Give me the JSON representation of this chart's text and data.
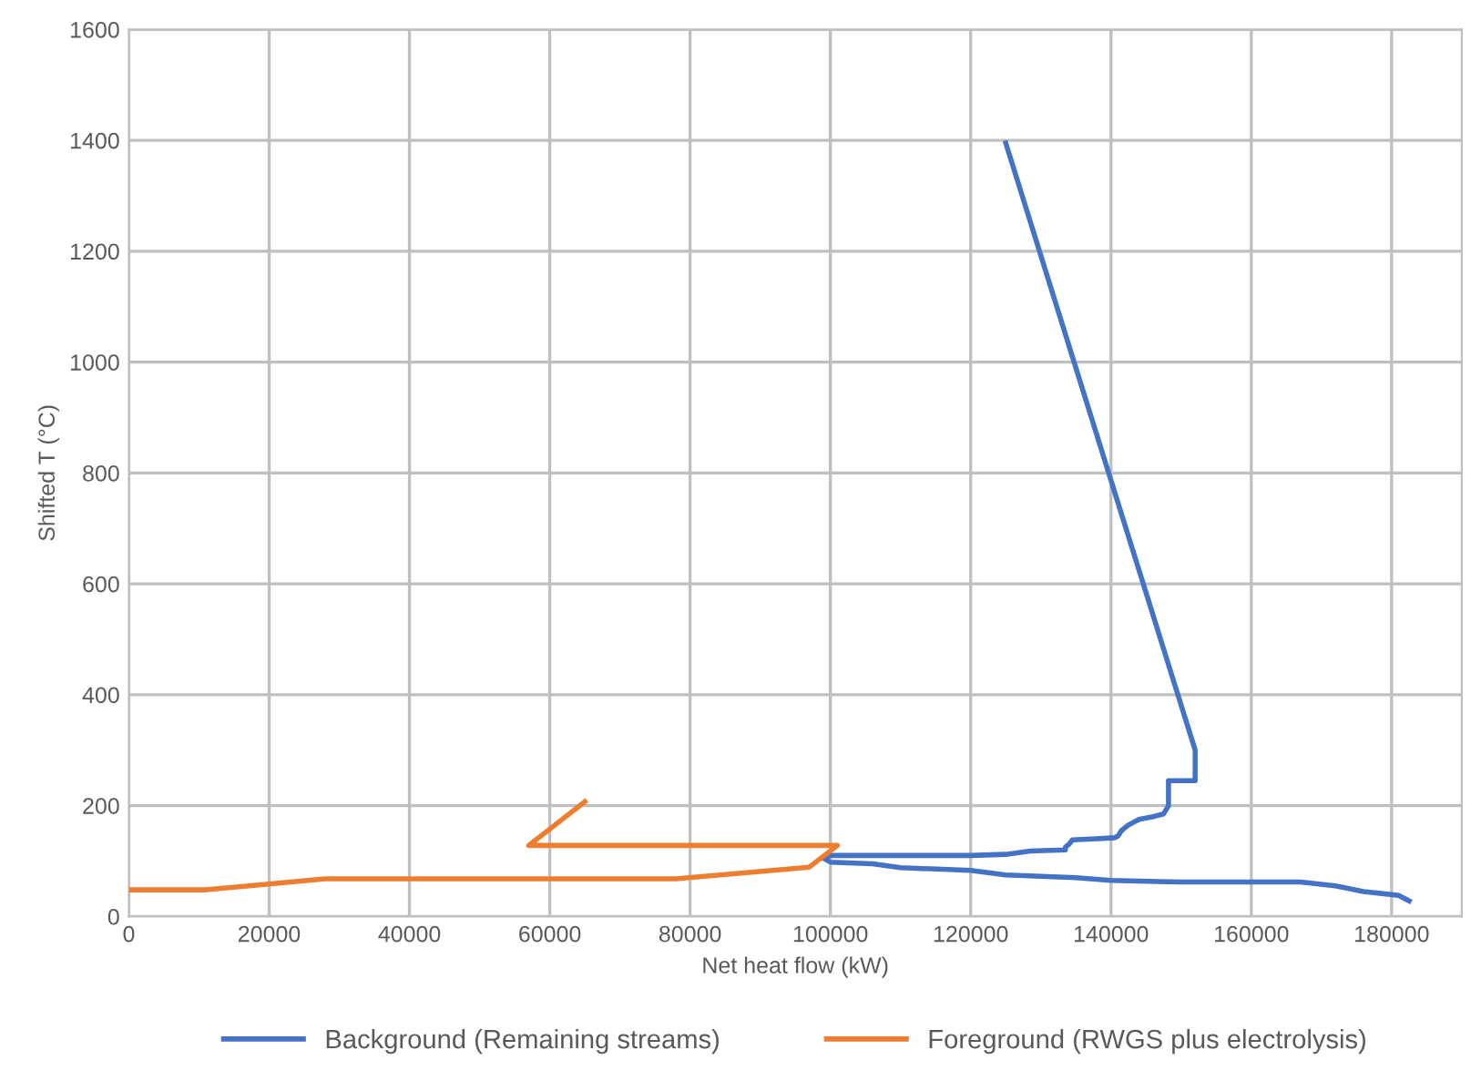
{
  "chart_data": {
    "type": "line",
    "xlabel": "Net heat flow (kW)",
    "ylabel": "Shifted T (°C)",
    "xlim": [
      0,
      190000
    ],
    "ylim": [
      0,
      1600
    ],
    "xticks": [
      0,
      20000,
      40000,
      60000,
      80000,
      100000,
      120000,
      140000,
      160000,
      180000
    ],
    "yticks": [
      0,
      200,
      400,
      600,
      800,
      1000,
      1200,
      1400,
      1600
    ],
    "grid": true,
    "legend": "bottom",
    "marker": "none",
    "line_style": "solid",
    "series": [
      {
        "name": "Background (Remaining streams)",
        "color": "#4472c4",
        "x": [
          125000,
          152000,
          152000,
          148200,
          148200,
          147500,
          146000,
          144000,
          142500,
          142000,
          141500,
          141000,
          140500,
          138000,
          134500,
          134000,
          133500,
          133500,
          128500,
          125000,
          120000,
          100000,
          99000,
          100000,
          106000,
          110000,
          120000,
          125000,
          135000,
          140000,
          150000,
          167000,
          172000,
          176000,
          181000,
          182500
        ],
        "values": [
          1395,
          300,
          245,
          245,
          200,
          185,
          180,
          175,
          165,
          160,
          155,
          145,
          142,
          140,
          138,
          130,
          125,
          120,
          118,
          112,
          110,
          110,
          105,
          98,
          95,
          88,
          83,
          75,
          70,
          65,
          62,
          62,
          55,
          45,
          38,
          28
        ]
      },
      {
        "name": "Foreground (RWGS plus electrolysis)",
        "color": "#ed7d31",
        "x": [
          0,
          11000,
          28000,
          78000,
          97000,
          101000,
          57000,
          65000
        ],
        "values": [
          48,
          48,
          68,
          68,
          89,
          128,
          128,
          207
        ]
      }
    ]
  }
}
